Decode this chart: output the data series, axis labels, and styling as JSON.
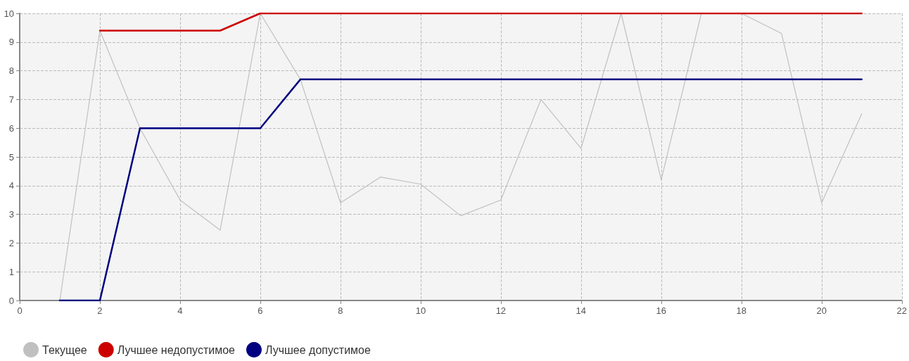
{
  "chart_data": {
    "type": "line",
    "x": [
      1,
      2,
      3,
      4,
      5,
      6,
      7,
      8,
      9,
      10,
      11,
      12,
      13,
      14,
      15,
      16,
      17,
      18,
      19,
      20,
      21
    ],
    "series": [
      {
        "name": "Текущее",
        "color": "#c0c0c0",
        "values": [
          0,
          9.4,
          6.0,
          3.5,
          2.45,
          10,
          7.7,
          3.4,
          4.3,
          4.05,
          2.95,
          3.5,
          7.0,
          5.3,
          10,
          4.2,
          10,
          10,
          9.3,
          3.4,
          6.5
        ]
      },
      {
        "name": "Лучшее недопустимое",
        "color": "#cc0000",
        "values": [
          null,
          9.4,
          9.4,
          9.4,
          9.4,
          10,
          10,
          10,
          10,
          10,
          10,
          10,
          10,
          10,
          10,
          10,
          10,
          10,
          10,
          10,
          10
        ]
      },
      {
        "name": "Лучшее допустимое",
        "color": "#000080",
        "values": [
          0,
          0,
          6,
          6,
          6,
          6,
          7.7,
          7.7,
          7.7,
          7.7,
          7.7,
          7.7,
          7.7,
          7.7,
          7.7,
          7.7,
          7.7,
          7.7,
          7.7,
          7.7,
          7.7
        ]
      }
    ],
    "xlim": [
      0,
      22
    ],
    "xticks": [
      0,
      2,
      4,
      6,
      8,
      10,
      12,
      14,
      16,
      18,
      20,
      22
    ],
    "ylim": [
      0,
      10
    ],
    "yticks": [
      0,
      1,
      2,
      3,
      4,
      5,
      6,
      7,
      8,
      9,
      10
    ],
    "grid": true,
    "legend": "bottom left",
    "marker": "none",
    "line_style": "solid"
  }
}
